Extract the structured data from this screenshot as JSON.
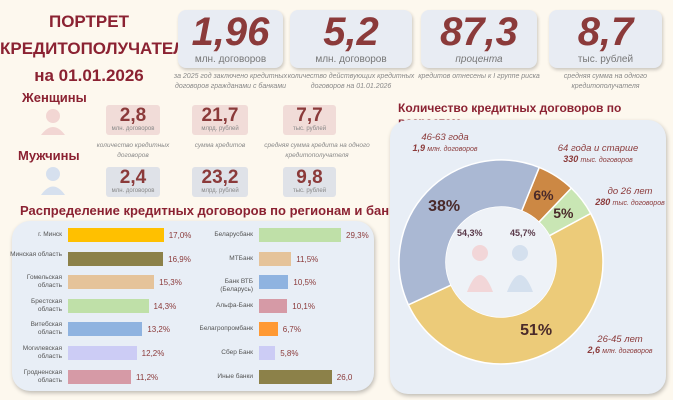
{
  "header": {
    "title_line1": "ПОРТРЕТ",
    "title_line2": "КРЕДИТОПОЛУЧАТЕЛЯ",
    "title_line3": "на 01.01.2026"
  },
  "stats": [
    {
      "value": "1,96",
      "unit": "млн. договоров",
      "caption": "за 2025 год заключено кредитных договоров гражданами с банками"
    },
    {
      "value": "5,2",
      "unit": "млн. договоров",
      "caption": "количество действующих кредитных договоров на 01.01.2026"
    },
    {
      "value": "87,3",
      "unit": "процента",
      "caption": "кредитов отнесены к I группе риска"
    },
    {
      "value": "8,7",
      "unit": "тыс. рублей",
      "caption": "средняя сумма на одного кредитополучателя"
    }
  ],
  "gender": {
    "women_label": "Женщины",
    "men_label": "Мужчины",
    "women": [
      {
        "value": "2,8",
        "unit": "млн. договоров"
      },
      {
        "value": "21,7",
        "unit": "млрд. рублей"
      },
      {
        "value": "7,7",
        "unit": "тыс. рублей"
      }
    ],
    "men": [
      {
        "value": "2,4",
        "unit": "млн. договоров"
      },
      {
        "value": "23,2",
        "unit": "млрд. рублей"
      },
      {
        "value": "9,8",
        "unit": "тыс. рублей"
      }
    ],
    "captions": [
      "количество кредитных договоров",
      "сумма кредитов",
      "средняя сумма кредита на одного кредитополучателя"
    ]
  },
  "chart_data": [
    {
      "type": "bar",
      "orientation": "horizontal",
      "title": "Распределение  кредитных договоров по регионам и банкам",
      "categories": [
        "г. Минск",
        "Минская область",
        "Гомельская область",
        "Брестская область",
        "Витебская область",
        "Могилевская область",
        "Гродненская область"
      ],
      "values": [
        17.0,
        16.9,
        15.3,
        14.3,
        13.2,
        12.2,
        11.2
      ],
      "labels": [
        "17,0%",
        "16,9%",
        "15,3%",
        "14,3%",
        "13,2%",
        "12,2%",
        "11,2%"
      ],
      "colors": [
        "#ffc000",
        "#8c8149",
        "#e5c39a",
        "#bfe0a8",
        "#8fb3e0",
        "#ccccf5",
        "#d69aa6"
      ]
    },
    {
      "type": "bar",
      "orientation": "horizontal",
      "categories": [
        "Беларусбанк",
        "МТБанк",
        "Банк ВТБ (Беларусь)",
        "Альфа-Банк",
        "Белагропромбанк",
        "Сбер Банк",
        "Иные банки"
      ],
      "values": [
        29.3,
        11.5,
        10.5,
        10.1,
        6.7,
        5.8,
        26.0
      ],
      "labels": [
        "29,3%",
        "11,5%",
        "10,5%",
        "10,1%",
        "6,7%",
        "5,8%",
        "26,0"
      ],
      "colors": [
        "#bfe0a8",
        "#e5c39a",
        "#8fb3e0",
        "#d69aa6",
        "#ff9933",
        "#ccccf5",
        "#8c8149"
      ]
    },
    {
      "type": "pie",
      "donut": true,
      "title": "Количество кредитных договоров по возрастам",
      "slices": [
        {
          "label": "64 года и старше",
          "sub_value": "330",
          "sub_unit": "тыс. договоров",
          "value": 6,
          "pct": "6%",
          "color": "#cc8844"
        },
        {
          "label": "до 26 лет",
          "sub_value": "280",
          "sub_unit": "тыс. договоров",
          "value": 5,
          "pct": "5%",
          "color": "#c9e6b4"
        },
        {
          "label": "26-45 лет",
          "sub_value": "2,6",
          "sub_unit": "млн. договоров",
          "value": 51,
          "pct": "51%",
          "color": "#eccb79"
        },
        {
          "label": "46-63 года",
          "sub_value": "1,9",
          "sub_unit": "млн. договоров",
          "value": 38,
          "pct": "38%",
          "color": "#aab8d3"
        }
      ],
      "center": {
        "women_pct": "54,3%",
        "men_pct": "45,7%"
      }
    }
  ]
}
